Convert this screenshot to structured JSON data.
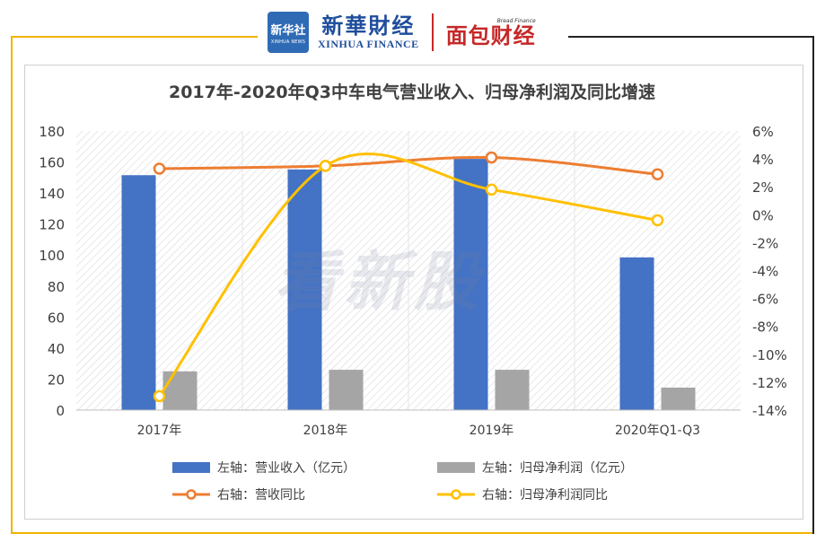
{
  "header": {
    "logo_box_cn": "新华社",
    "logo_box_en": "XINHUA NEWS",
    "brand_cn": "新華財经",
    "brand_en": "XINHUA FINANCE",
    "bf_small": "Bread Finance",
    "bf_big": "面包财经"
  },
  "watermark": "看新股",
  "colors": {
    "bar_revenue": "#4472c4",
    "bar_profit": "#a5a5a5",
    "line_revenue_yoy": "#ed7d31",
    "line_profit_yoy": "#ffc000",
    "frame_accent": "#f0b400"
  },
  "chart_data": {
    "type": "bar",
    "title": "2017年-2020年Q3中车电气营业收入、归母净利润及同比增速",
    "categories": [
      "2017年",
      "2018年",
      "2019年",
      "2020年Q1-Q3"
    ],
    "left_axis": {
      "ylim": [
        0,
        180
      ],
      "ticks": [
        "0",
        "20",
        "40",
        "60",
        "80",
        "100",
        "120",
        "140",
        "160",
        "180"
      ]
    },
    "right_axis": {
      "ylim": [
        -14,
        6
      ],
      "ticks": [
        "-14%",
        "-12%",
        "-10%",
        "-8%",
        "-6%",
        "-4%",
        "-2%",
        "0%",
        "2%",
        "4%",
        "6%"
      ]
    },
    "series": [
      {
        "name": "左轴：营业收入（亿元）",
        "kind": "bar",
        "axis": "left",
        "values": [
          151.5,
          155.2,
          162.0,
          98.5
        ]
      },
      {
        "name": "左轴：归母净利润（亿元）",
        "kind": "bar",
        "axis": "left",
        "values": [
          25.0,
          26.0,
          26.0,
          14.5
        ]
      },
      {
        "name": "右轴：营收同比",
        "kind": "line",
        "axis": "right",
        "values": [
          3.3,
          3.5,
          4.1,
          2.9
        ]
      },
      {
        "name": "右轴：归母净利润同比",
        "kind": "line",
        "axis": "right",
        "values": [
          -13.0,
          3.5,
          1.8,
          -0.4
        ]
      }
    ],
    "grid": false,
    "legend_position": "bottom"
  }
}
